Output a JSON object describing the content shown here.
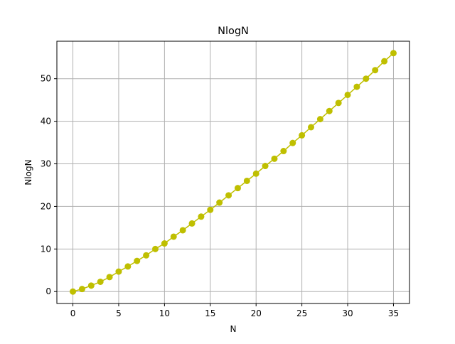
{
  "chart_data": {
    "type": "line",
    "title": "NlogN",
    "xlabel": "N",
    "ylabel": "NlogN",
    "xlim": [
      -1.75,
      36.75
    ],
    "ylim": [
      -2.8,
      58.8
    ],
    "x_ticks": [
      0,
      5,
      10,
      15,
      20,
      25,
      30,
      35
    ],
    "y_ticks": [
      0,
      10,
      20,
      30,
      40,
      50
    ],
    "grid": true,
    "legend": "none",
    "series": [
      {
        "color": "#bfbf00",
        "marker": "circle",
        "x": [
          0,
          1,
          2,
          3,
          4,
          5,
          6,
          7,
          8,
          9,
          10,
          11,
          12,
          13,
          14,
          15,
          16,
          17,
          18,
          19,
          20,
          21,
          22,
          23,
          24,
          25,
          26,
          27,
          28,
          29,
          30,
          31,
          32,
          33,
          34,
          35
        ],
        "y": [
          0,
          0.6,
          1.4,
          2.3,
          3.4,
          4.7,
          5.9,
          7.2,
          8.5,
          10.0,
          11.3,
          12.9,
          14.4,
          16.0,
          17.6,
          19.2,
          20.9,
          22.6,
          24.3,
          26.0,
          27.7,
          29.5,
          31.2,
          33.0,
          34.9,
          36.7,
          38.6,
          40.5,
          42.4,
          44.3,
          46.2,
          48.1,
          50.0,
          52.0,
          54.1,
          56.0
        ]
      }
    ]
  }
}
